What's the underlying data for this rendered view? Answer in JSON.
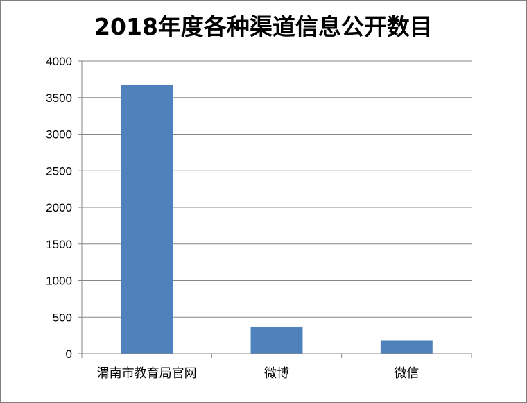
{
  "chart_data": {
    "type": "bar",
    "title": "2018年度各种渠道信息公开数目",
    "categories": [
      "渭南市教育局官网",
      "微博",
      "微信"
    ],
    "values": [
      3670,
      370,
      185
    ],
    "ylim": [
      0,
      4000
    ],
    "yticks": [
      0,
      500,
      1000,
      1500,
      2000,
      2500,
      3000,
      3500,
      4000
    ],
    "grid": true,
    "legend": "none",
    "colors": {
      "bar": "#4f81bd",
      "grid": "#868686",
      "axis": "#868686",
      "border": "#7f7f7f"
    }
  }
}
